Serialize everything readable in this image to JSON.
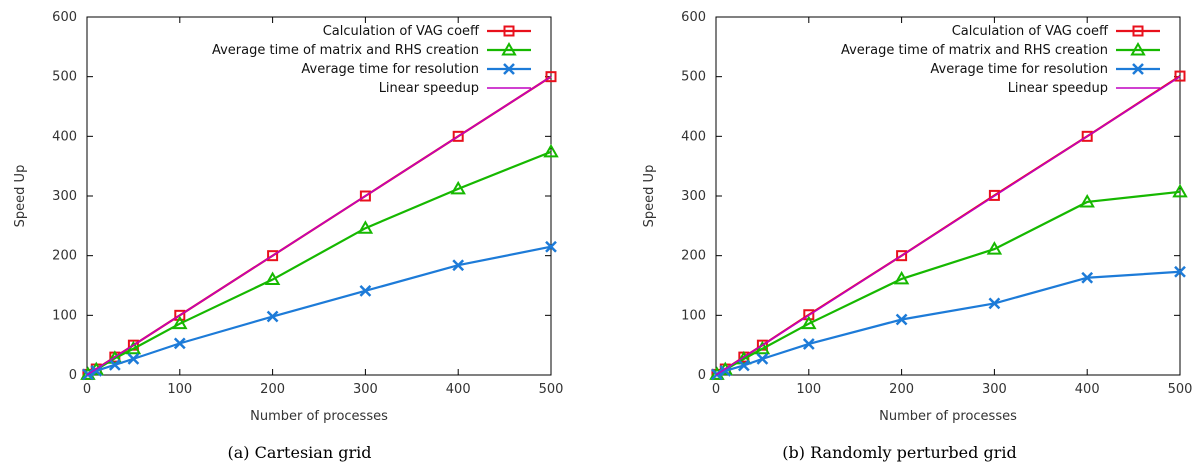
{
  "chart_data": [
    {
      "type": "line",
      "caption": "(a) Cartesian grid",
      "xlabel": "Number of processes",
      "ylabel": "Speed Up",
      "xlim": [
        0,
        500
      ],
      "ylim": [
        0,
        600
      ],
      "xticks": [
        0,
        100,
        200,
        300,
        400,
        500
      ],
      "yticks": [
        0,
        100,
        200,
        300,
        400,
        500,
        600
      ],
      "legend_position": "top-right",
      "series": [
        {
          "name": "Calculation of VAG coeff",
          "color": "#e8101c",
          "marker": "square",
          "x": [
            1,
            10,
            30,
            50,
            100,
            200,
            300,
            400,
            500
          ],
          "y": [
            1,
            10,
            30,
            50,
            100,
            200,
            300,
            400,
            500
          ]
        },
        {
          "name": "Average time of matrix and RHS creation",
          "color": "#16b800",
          "marker": "triangle",
          "x": [
            1,
            10,
            30,
            50,
            100,
            200,
            300,
            400,
            500
          ],
          "y": [
            1,
            9,
            28,
            44,
            86,
            160,
            246,
            312,
            374
          ]
        },
        {
          "name": "Average time for resolution",
          "color": "#1d7bd8",
          "marker": "cross",
          "x": [
            1,
            10,
            30,
            50,
            100,
            200,
            300,
            400,
            500
          ],
          "y": [
            1,
            7,
            17,
            27,
            53,
            98,
            141,
            184,
            215
          ]
        },
        {
          "name": "Linear speedup",
          "color": "#c000c0",
          "marker": "none",
          "x": [
            0,
            500
          ],
          "y": [
            0,
            500
          ]
        }
      ]
    },
    {
      "type": "line",
      "caption": "(b) Randomly perturbed grid",
      "xlabel": "Number of processes",
      "ylabel": "Speed Up",
      "xlim": [
        0,
        500
      ],
      "ylim": [
        0,
        600
      ],
      "xticks": [
        0,
        100,
        200,
        300,
        400,
        500
      ],
      "yticks": [
        0,
        100,
        200,
        300,
        400,
        500,
        600
      ],
      "legend_position": "top-right",
      "series": [
        {
          "name": "Calculation of VAG coeff",
          "color": "#e8101c",
          "marker": "square",
          "x": [
            1,
            10,
            30,
            50,
            100,
            200,
            300,
            400,
            500
          ],
          "y": [
            1,
            10,
            30,
            50,
            101,
            200,
            301,
            400,
            501
          ]
        },
        {
          "name": "Average time of matrix and RHS creation",
          "color": "#16b800",
          "marker": "triangle",
          "x": [
            1,
            10,
            30,
            50,
            100,
            200,
            300,
            400,
            500
          ],
          "y": [
            1,
            9,
            27,
            44,
            86,
            161,
            211,
            290,
            307
          ]
        },
        {
          "name": "Average time for resolution",
          "color": "#1d7bd8",
          "marker": "cross",
          "x": [
            1,
            10,
            30,
            50,
            100,
            200,
            300,
            400,
            500
          ],
          "y": [
            1,
            7,
            16,
            27,
            52,
            93,
            120,
            163,
            173
          ]
        },
        {
          "name": "Linear speedup",
          "color": "#c000c0",
          "marker": "none",
          "x": [
            0,
            500
          ],
          "y": [
            0,
            500
          ]
        }
      ]
    }
  ]
}
